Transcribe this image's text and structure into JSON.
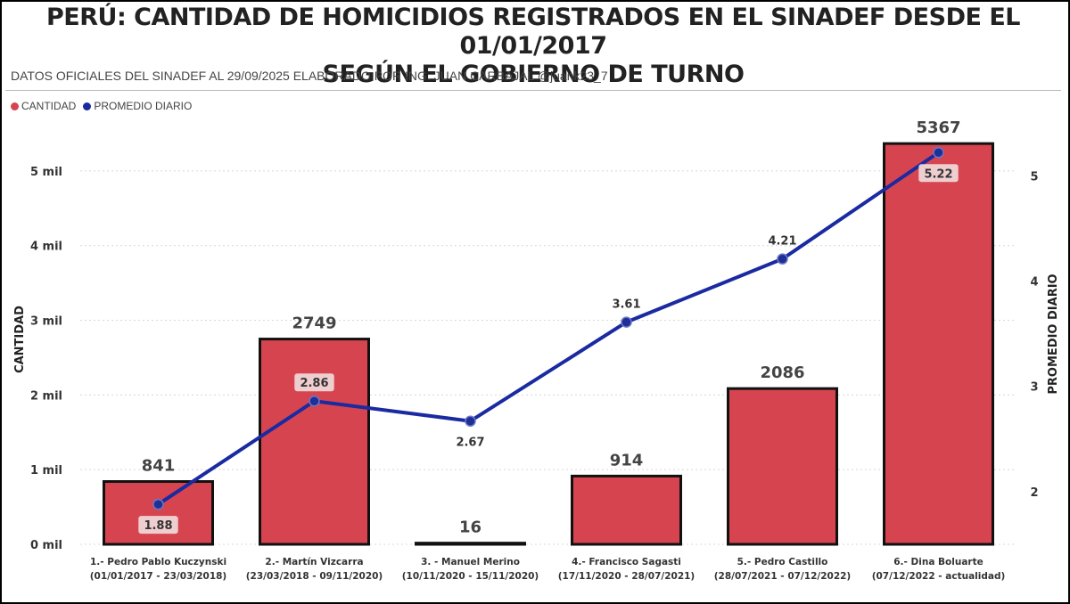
{
  "title_line1": "PERÚ: CANTIDAD DE HOMICIDIOS REGISTRADOS EN EL SINADEF DESDE EL 01/01/2017",
  "title_line2": "SEGÚN EL GOBIERNO DE TURNO",
  "subtitle": "DATOS OFICIALES DEL SINADEF AL 29/09/2025 ELABORADO POR ING. JUAN CARBAJAL @juank23_7",
  "legend": {
    "bar_label": "CANTIDAD",
    "bar_color": "#d6444f",
    "line_label": "PROMEDIO DIARIO",
    "line_color": "#1a2aa0"
  },
  "chart_data": {
    "type": "bar",
    "categories": [
      [
        "1.- Pedro Pablo Kuczynski",
        "(01/01/2017 - 23/03/2018)"
      ],
      [
        "2.- Martín Vizcarra",
        "(23/03/2018 - 09/11/2020)"
      ],
      [
        "3. - Manuel Merino",
        "(10/11/2020 - 15/11/2020)"
      ],
      [
        "4.- Francisco Sagasti",
        "(17/11/2020 - 28/07/2021)"
      ],
      [
        "5.- Pedro Castillo",
        "(28/07/2021 - 07/12/2022)"
      ],
      [
        "6.- Dina Boluarte",
        "(07/12/2022 - actualidad)"
      ]
    ],
    "series": [
      {
        "name": "CANTIDAD",
        "type": "bar",
        "axis": "left",
        "values": [
          841,
          2749,
          16,
          914,
          2086,
          5367
        ],
        "labels": [
          "841",
          "2749",
          "16",
          "914",
          "2086",
          "5367"
        ]
      },
      {
        "name": "PROMEDIO DIARIO",
        "type": "line",
        "axis": "right",
        "values": [
          1.88,
          2.86,
          2.67,
          3.61,
          4.21,
          5.22
        ],
        "labels": [
          "1.88",
          "2.86",
          "2.67",
          "3.61",
          "4.21",
          "5.22"
        ]
      }
    ],
    "y_left": {
      "label": "CANTIDAD",
      "min": 0,
      "max": 5500,
      "ticks": [
        0,
        1000,
        2000,
        3000,
        4000,
        5000
      ],
      "tick_labels": [
        "0 mil",
        "1 mil",
        "2 mil",
        "3 mil",
        "4 mil",
        "5 mil"
      ]
    },
    "y_right": {
      "label": "PROMEDIO DIARIO",
      "min": 1.5,
      "max": 5.4,
      "ticks": [
        2,
        3,
        4,
        5
      ],
      "tick_labels": [
        "2",
        "3",
        "4",
        "5"
      ]
    },
    "grid": true,
    "legend_position": "top-left"
  }
}
